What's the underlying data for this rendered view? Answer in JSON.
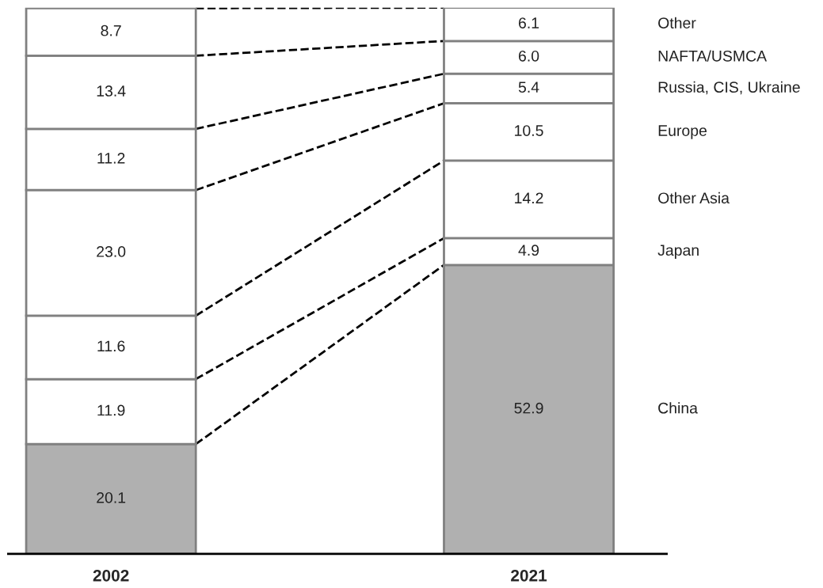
{
  "chart_data": {
    "type": "bar",
    "stacked": true,
    "categories": [
      "2002",
      "2021"
    ],
    "series": [
      {
        "name": "China",
        "color": "#b0b0b0",
        "values": [
          20.1,
          52.9
        ],
        "value_labels": [
          "20.1",
          "52.9"
        ]
      },
      {
        "name": "Japan",
        "color": "#ffffff",
        "values": [
          11.9,
          4.9
        ],
        "value_labels": [
          "11.9",
          "4.9"
        ]
      },
      {
        "name": "Other Asia",
        "color": "#ffffff",
        "values": [
          11.6,
          14.2
        ],
        "value_labels": [
          "11.6",
          "14.2"
        ]
      },
      {
        "name": "Europe",
        "color": "#ffffff",
        "values": [
          23.0,
          10.5
        ],
        "value_labels": [
          "23.0",
          "10.5"
        ]
      },
      {
        "name": "Russia, CIS, Ukraine",
        "color": "#ffffff",
        "values": [
          11.2,
          5.4
        ],
        "value_labels": [
          "11.2",
          "5.4"
        ]
      },
      {
        "name": "NAFTA/USMCA",
        "color": "#ffffff",
        "values": [
          13.4,
          6.0
        ],
        "value_labels": [
          "13.4",
          "6.0"
        ]
      },
      {
        "name": "Other",
        "color": "#ffffff",
        "values": [
          8.7,
          6.1
        ],
        "value_labels": [
          "8.7",
          "6.1"
        ]
      }
    ],
    "legend": false,
    "grid": false
  }
}
